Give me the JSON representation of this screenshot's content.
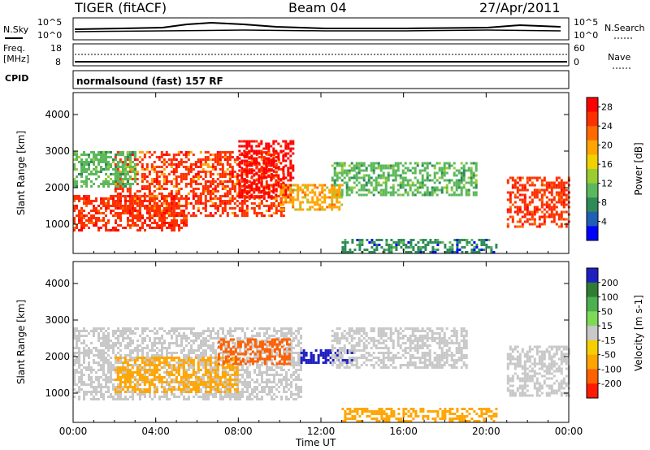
{
  "header": {
    "radar": "TIGER (fitACF)",
    "beam": "Beam 04",
    "date": "27/Apr/2011"
  },
  "panels": {
    "nsky": {
      "label": "N.Sky",
      "ticks": [
        "10^5",
        "10^0"
      ],
      "right_label": "N.Search",
      "right_ticks": [
        "10^5",
        "10^0"
      ]
    },
    "freq": {
      "label_line1": "Freq.",
      "label_line2": "[MHz]",
      "ticks": [
        "18",
        "8"
      ],
      "right_label": "Nave",
      "right_ticks": [
        "60",
        "0"
      ]
    },
    "cpid": {
      "label": "CPID",
      "text": "normalsound (fast) 157 RF"
    }
  },
  "chart_data": [
    {
      "type": "heatmap",
      "name": "power",
      "xlabel": "",
      "ylabel": "Slant Range [km]",
      "ylim": [
        200,
        4600
      ],
      "y_ticks": [
        1000,
        2000,
        3000,
        4000
      ],
      "xlim_hours": [
        0,
        24
      ],
      "x_ticks": [
        "00:00",
        "04:00",
        "08:00",
        "12:00",
        "16:00",
        "20:00",
        "00:00"
      ],
      "colorbar": {
        "label": "Power [dB]",
        "range": [
          0,
          30
        ],
        "ticks": [
          4,
          8,
          12,
          16,
          20,
          24,
          28
        ],
        "colors": [
          "#0000ff",
          "#1f5fb4",
          "#2e8b57",
          "#5cb85c",
          "#9acd32",
          "#f0d000",
          "#ffa500",
          "#ff6a00",
          "#ff3000",
          "#ff0000"
        ]
      },
      "regions": [
        {
          "t0": 0.0,
          "t1": 5.5,
          "r0": 800,
          "r1": 1800,
          "level": 26
        },
        {
          "t0": 2.0,
          "t1": 10.2,
          "r0": 1200,
          "r1": 3000,
          "level": 24
        },
        {
          "t0": 8.0,
          "t1": 10.6,
          "r0": 1700,
          "r1": 3300,
          "level": 28
        },
        {
          "t0": 0.0,
          "t1": 3.0,
          "r0": 2000,
          "r1": 3000,
          "level": 10
        },
        {
          "t0": 12.5,
          "t1": 19.5,
          "r0": 1800,
          "r1": 2700,
          "level": 10
        },
        {
          "t0": 10.0,
          "t1": 13.0,
          "r0": 1400,
          "r1": 2100,
          "level": 18
        },
        {
          "t0": 13.0,
          "t1": 20.5,
          "r0": 250,
          "r1": 600,
          "level": 6
        },
        {
          "t0": 21.0,
          "t1": 24.0,
          "r0": 900,
          "r1": 2300,
          "level": 26
        }
      ]
    },
    {
      "type": "heatmap",
      "name": "velocity",
      "xlabel": "Time UT",
      "ylabel": "Slant Range [km]",
      "ylim": [
        200,
        4600
      ],
      "y_ticks": [
        1000,
        2000,
        3000,
        4000
      ],
      "xlim_hours": [
        0,
        24
      ],
      "x_ticks": [
        "00:00",
        "04:00",
        "08:00",
        "12:00",
        "16:00",
        "20:00",
        "00:00"
      ],
      "colorbar": {
        "label": "Velocity [m s-1]",
        "ticks": [
          "200",
          "100",
          "50",
          "15",
          "-15",
          "-50",
          "-100",
          "-200"
        ],
        "colors": [
          "#2020c0",
          "#2e7d32",
          "#4caf50",
          "#7ed957",
          "#c8c8c8",
          "#f5d000",
          "#ffa500",
          "#ff6000",
          "#ff1a00"
        ]
      },
      "regions": [
        {
          "t0": 0.0,
          "t1": 11.0,
          "r0": 800,
          "r1": 2800,
          "level": "-15..15"
        },
        {
          "t0": 2.0,
          "t1": 8.0,
          "r0": 1000,
          "r1": 2000,
          "level": "-50"
        },
        {
          "t0": 7.0,
          "t1": 10.5,
          "r0": 1800,
          "r1": 2500,
          "level": "-100"
        },
        {
          "t0": 11.0,
          "t1": 13.5,
          "r0": 1800,
          "r1": 2200,
          "level": "100..200"
        },
        {
          "t0": 12.5,
          "t1": 19.0,
          "r0": 1700,
          "r1": 2800,
          "level": "-15..15"
        },
        {
          "t0": 13.0,
          "t1": 20.5,
          "r0": 250,
          "r1": 600,
          "level": "-50"
        },
        {
          "t0": 21.0,
          "t1": 24.0,
          "r0": 900,
          "r1": 2300,
          "level": "-15..15"
        }
      ]
    }
  ]
}
